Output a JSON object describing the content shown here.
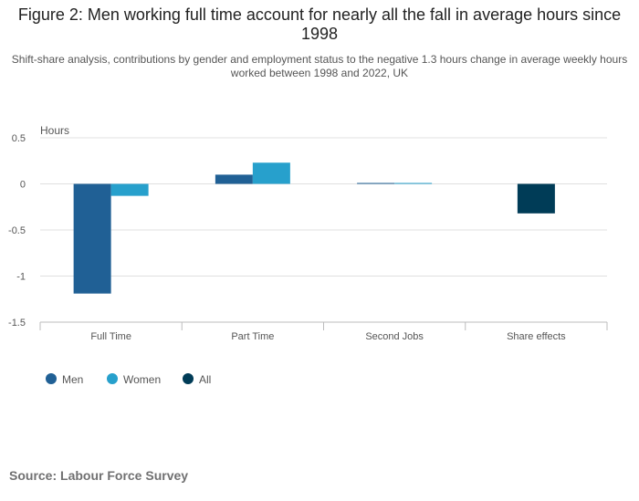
{
  "title": "Figure 2: Men working full time account for nearly all the fall in average hours since 1998",
  "subtitle": "Shift-share analysis, contributions by gender and employment status to the negative 1.3 hours change in average weekly hours worked between 1998 and 2022, UK",
  "source": "Source: Labour Force Survey",
  "colors": {
    "men": "#206095",
    "women": "#27a0cc",
    "all": "#003c57",
    "grid": "#e0e0e0",
    "axis": "#bcbcbd",
    "tick_text": "#555555"
  },
  "chart_data": {
    "type": "bar",
    "ylabel": "Hours",
    "ylim": [
      -1.5,
      0.5
    ],
    "yticks": [
      0.5,
      0,
      -0.5,
      -1,
      -1.5
    ],
    "ytick_labels": [
      "0.5",
      "0",
      "-0.5",
      "-1",
      "-1.5"
    ],
    "categories": [
      "Full Time",
      "Part Time",
      "Second Jobs",
      "Share effects"
    ],
    "series": [
      {
        "name": "Men",
        "color": "#206095",
        "values": [
          -1.19,
          0.1,
          0.01,
          null
        ]
      },
      {
        "name": "Women",
        "color": "#27a0cc",
        "values": [
          -0.13,
          0.23,
          0.01,
          null
        ]
      },
      {
        "name": "All",
        "color": "#003c57",
        "values": [
          null,
          null,
          null,
          -0.32
        ]
      }
    ],
    "grid": true,
    "legend_position": "bottom-left"
  }
}
